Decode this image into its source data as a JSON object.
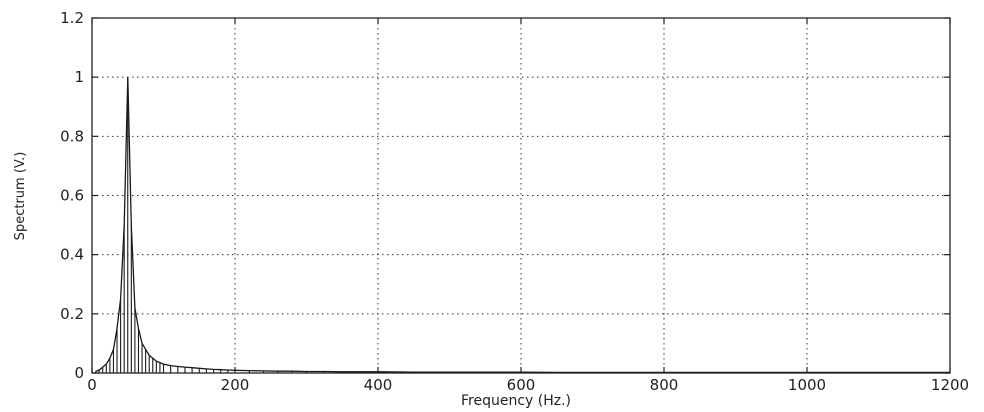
{
  "chart_data": {
    "type": "bar",
    "xlabel": "Frequency (Hz.)",
    "ylabel": "Spectrum (V.)",
    "xlim": [
      0,
      1200
    ],
    "ylim": [
      0,
      1.2
    ],
    "x_ticks": [
      0,
      200,
      400,
      600,
      800,
      1000,
      1200
    ],
    "x_tick_labels": [
      "0",
      "200",
      "400",
      "600",
      "800",
      "1000",
      "1200"
    ],
    "y_ticks": [
      0,
      0.2,
      0.4,
      0.6,
      0.8,
      1,
      1.2
    ],
    "y_tick_labels": [
      "0",
      "0.2",
      "0.4",
      "0.6",
      "0.8",
      "1",
      "1.2"
    ],
    "grid": true,
    "series": [
      {
        "x": [
          5,
          10,
          15,
          20,
          25,
          30,
          35,
          40,
          45,
          50,
          55,
          60,
          65,
          70,
          75,
          80,
          85,
          90,
          95,
          100,
          110,
          120,
          130,
          140,
          150,
          160,
          170,
          180,
          190,
          200,
          220,
          240,
          260,
          280,
          300,
          325,
          350,
          375,
          400,
          450,
          500,
          550,
          600,
          650,
          700,
          750,
          800,
          850,
          900,
          950,
          1000,
          1050,
          1100,
          1150,
          1200
        ],
        "values": [
          0.005,
          0.01,
          0.02,
          0.03,
          0.05,
          0.08,
          0.15,
          0.25,
          0.5,
          1.0,
          0.5,
          0.22,
          0.15,
          0.1,
          0.08,
          0.06,
          0.05,
          0.04,
          0.035,
          0.03,
          0.025,
          0.022,
          0.02,
          0.018,
          0.016,
          0.014,
          0.012,
          0.011,
          0.01,
          0.009,
          0.008,
          0.007,
          0.006,
          0.006,
          0.005,
          0.005,
          0.004,
          0.004,
          0.004,
          0.003,
          0.003,
          0.003,
          0.003,
          0.002,
          0.002,
          0.002,
          0.002,
          0.002,
          0.002,
          0.002,
          0.002,
          0.002,
          0.002,
          0.002,
          0.002
        ]
      }
    ]
  }
}
